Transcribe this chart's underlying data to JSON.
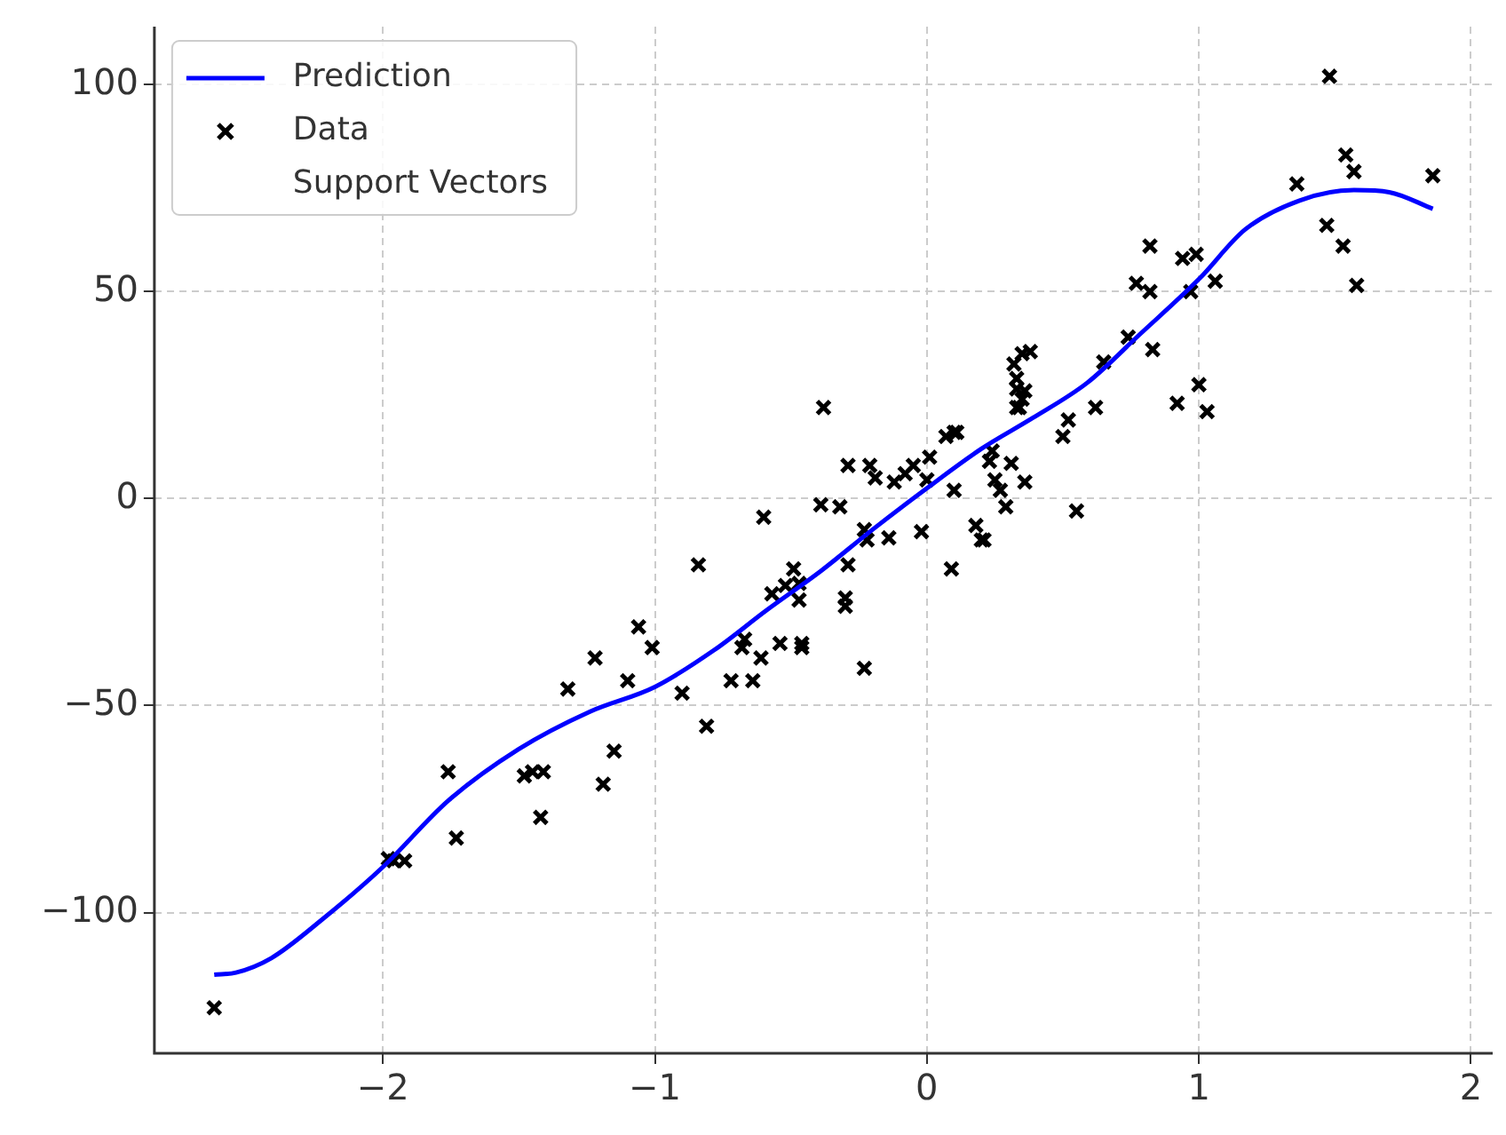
{
  "chart_data": {
    "type": "scatter",
    "xlim": [
      -2.84,
      2.08
    ],
    "ylim": [
      -134,
      114
    ],
    "xticks": [
      -2,
      -1,
      0,
      1,
      2
    ],
    "yticks": [
      -100,
      -50,
      0,
      50,
      100
    ],
    "grid": true,
    "legend": "top left",
    "series": [
      {
        "name": "Prediction",
        "type": "line",
        "color": "#0000ff",
        "marker": "none",
        "line_style": "solid",
        "x": [
          -2.62,
          -2.54,
          -2.41,
          -2.22,
          -2,
          -1.76,
          -1.5,
          -1.24,
          -1,
          -0.78,
          -0.59,
          -0.39,
          -0.2,
          0,
          0.2,
          0.39,
          0.59,
          0.78,
          1,
          1.17,
          1.37,
          1.57,
          1.7,
          1.86
        ],
        "values": [
          -115,
          -114.5,
          -111,
          -101.5,
          -89,
          -73,
          -60.5,
          -51.5,
          -45.5,
          -36.5,
          -27,
          -17.5,
          -7.5,
          2.5,
          12,
          19.5,
          28,
          39.5,
          53,
          65,
          72,
          74.5,
          74,
          70
        ]
      },
      {
        "name": "Data",
        "color": "#000000",
        "marker": "cross",
        "x": [
          -2.62,
          -1.98,
          -1.96,
          -1.92,
          -1.76,
          -1.73,
          -1.48,
          -1.45,
          -1.41,
          -1.42,
          -1.22,
          -1.19,
          -1.15,
          -1.1,
          -1.06,
          -1.01,
          -1.32,
          -0.9,
          -0.84,
          -0.81,
          -0.72,
          -0.68,
          -0.67,
          -0.64,
          -0.61,
          -0.6,
          -0.57,
          -0.54,
          -0.52,
          -0.49,
          -0.47,
          -0.47,
          -0.46,
          -0.46,
          -0.39,
          -0.38,
          -0.32,
          -0.3,
          -0.3,
          -0.29,
          -0.29,
          -0.23,
          -0.23,
          -0.22,
          -0.21,
          -0.19,
          -0.14,
          -0.12,
          -0.08,
          -0.05,
          -0.02,
          0,
          0.01,
          0.07,
          0.1,
          0.11,
          0.09,
          0.1,
          0.18,
          0.2,
          0.21,
          0.23,
          0.24,
          0.25,
          0.27,
          0.29,
          0.31,
          0.32,
          0.33,
          0.33,
          0.35,
          0.35,
          0.34,
          0.36,
          0.33,
          0.38,
          0.36,
          0.5,
          0.52,
          0.55,
          0.62,
          0.65,
          0.74,
          0.77,
          0.82,
          0.82,
          0.83,
          0.92,
          0.94,
          0.97,
          0.99,
          1,
          1.03,
          1.06,
          1.36,
          1.48,
          1.47,
          1.53,
          1.54,
          1.57,
          1.58,
          1.86
        ],
        "values": [
          -123,
          -87,
          -87.5,
          -87.5,
          -66,
          -82,
          -67,
          -66,
          -66,
          -77,
          -38.5,
          -69,
          -61,
          -44,
          -31,
          -36,
          -46,
          -47,
          -16,
          -55,
          -44,
          -36,
          -34,
          -44,
          -38.5,
          -4.5,
          -23,
          -35,
          -21,
          -17,
          -20.5,
          -24.5,
          -35,
          -36,
          -1.5,
          22,
          -2,
          -24,
          -26,
          -16,
          8,
          -41,
          -7.5,
          -10,
          8,
          5,
          -9.5,
          4,
          6,
          8,
          -8,
          4.5,
          10,
          15,
          16,
          16,
          -17,
          2,
          -6.5,
          -10,
          -10,
          9,
          11.5,
          4.5,
          2,
          -2,
          8.5,
          32.5,
          29,
          26.5,
          35,
          24,
          22,
          26,
          22,
          35.5,
          4,
          15,
          19,
          -3,
          22,
          33,
          39,
          52,
          61,
          50,
          36,
          23,
          58,
          50,
          59,
          27.5,
          21,
          52.5,
          76,
          102,
          66,
          61,
          83,
          79,
          51.5,
          78
        ]
      },
      {
        "name": "Support Vectors",
        "marker": "none"
      }
    ]
  }
}
